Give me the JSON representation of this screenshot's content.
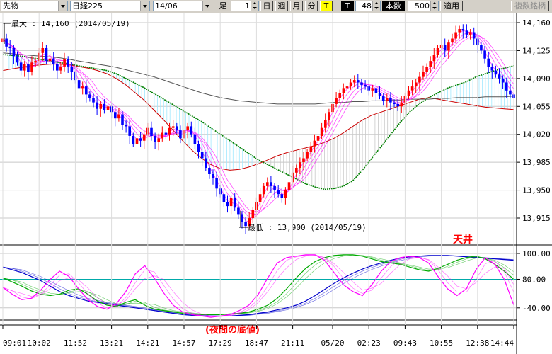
{
  "toolbar": {
    "instrument_type": "先物",
    "symbol": "日経225",
    "contract_month": "14/06",
    "bar_label": "足",
    "period_value": "1",
    "periods": [
      "日",
      "週",
      "月",
      "分",
      "T"
    ],
    "active_period": "T",
    "t_button": "T",
    "count_value": "48",
    "count_label": "本数",
    "display_count": "500",
    "apply_label": "適用",
    "multi_label": "複数銘柄"
  },
  "colors": {
    "up_candle": "#ff0000",
    "down_candle": "#0000ff",
    "ma_green": "#008000",
    "ma_red": "#cc0000",
    "ma_gray": "#555555",
    "band_fill": "#a0e8ff",
    "oscillator_magenta": "#ff00ff"
  },
  "annotations": {
    "max_label": "最大 : 14,160 (2014/05/19)",
    "min_label": "最低 : 13,900 (2014/05/19)",
    "top_label": "天井",
    "bottom_label": "(夜間の底値)"
  },
  "chart_data": [
    {
      "type": "line",
      "title": "",
      "y_axis_ticks": [
        "14,160",
        "14,125",
        "14,090",
        "14,055",
        "14,020",
        "13,985",
        "13,950",
        "13,915"
      ],
      "ylim": [
        13880,
        14175
      ],
      "x_axis_ticks": [
        "09:01",
        "10:02",
        "11:52",
        "13:21",
        "14:21",
        "14:57",
        "17:29",
        "18:47",
        "21:11",
        "05/20",
        "02:23",
        "09:43",
        "10:55",
        "12:38",
        "14:44"
      ],
      "x_tick_index": [
        0,
        10,
        20,
        30,
        40,
        50,
        60,
        70,
        80,
        91,
        101,
        111,
        121,
        131,
        141
      ],
      "max": {
        "value": 14160,
        "date": "2014/05/19"
      },
      "min": {
        "value": 13900,
        "date": "2014/05/19"
      },
      "close_series": [
        14140,
        14130,
        14128,
        14118,
        14110,
        14100,
        14108,
        14098,
        14110,
        14112,
        14122,
        14128,
        14112,
        14115,
        14108,
        14100,
        14105,
        14114,
        14105,
        14098,
        14088,
        14078,
        14080,
        14070,
        14065,
        14060,
        14052,
        14058,
        14050,
        14055,
        14048,
        14040,
        14045,
        14032,
        14030,
        14018,
        14008,
        14015,
        14012,
        14020,
        14028,
        14018,
        14010,
        14015,
        14022,
        14020,
        14028,
        14030,
        14025,
        14015,
        14025,
        14030,
        14020,
        14008,
        13998,
        13990,
        13978,
        13970,
        13965,
        13952,
        13945,
        13935,
        13930,
        13940,
        13928,
        13920,
        13910,
        13905,
        13915,
        13925,
        13935,
        13945,
        13955,
        13960,
        13955,
        13950,
        13945,
        13940,
        13950,
        13960,
        13972,
        13978,
        13985,
        13990,
        13998,
        14005,
        14012,
        14018,
        14028,
        14038,
        14048,
        14058,
        14065,
        14072,
        14078,
        14080,
        14085,
        14088,
        14085,
        14082,
        14080,
        14075,
        14078,
        14072,
        14068,
        14062,
        14065,
        14060,
        14058,
        14055,
        14060,
        14068,
        14075,
        14080,
        14085,
        14092,
        14098,
        14105,
        14112,
        14120,
        14128,
        14132,
        14125,
        14135,
        14140,
        14148,
        14152,
        14150,
        14145,
        14148,
        14140,
        14132,
        14125,
        14115,
        14105,
        14100,
        14095,
        14090,
        14085,
        14075,
        14070,
        14065
      ],
      "series": [
        {
          "name": "",
          "color": "#008000",
          "values": [
            14120,
            14119,
            14118,
            14116,
            14114,
            14112,
            14110,
            14108,
            14106,
            14104,
            14102,
            14100,
            14096,
            14090,
            14084,
            14078,
            14071,
            14064,
            14057,
            14050,
            14043,
            14036,
            14028,
            14020,
            14012,
            14004,
            13996,
            13988,
            13982,
            13976,
            13970,
            13964,
            13958,
            13954,
            13951,
            13952,
            13955,
            13962,
            13975,
            13990,
            14005,
            14020,
            14035,
            14048,
            14058,
            14066,
            14072,
            14078,
            14082,
            14086,
            14092,
            14096,
            14100,
            14103,
            14106
          ]
        },
        {
          "name": "",
          "color": "#cc0000",
          "values": [
            14100,
            14102,
            14104,
            14106,
            14107,
            14108,
            14108,
            14107,
            14105,
            14103,
            14100,
            14096,
            14090,
            14082,
            14072,
            14062,
            14050,
            14038,
            14025,
            14012,
            14000,
            13990,
            13982,
            13977,
            13975,
            13976,
            13979,
            13983,
            13988,
            13993,
            13997,
            14000,
            14003,
            14006,
            14010,
            14015,
            14022,
            14030,
            14038,
            14044,
            14048,
            14052,
            14056,
            14060,
            14064,
            14066,
            14064,
            14062,
            14060,
            14058,
            14056,
            14054,
            14053,
            14052,
            14051
          ]
        },
        {
          "name": "",
          "color": "#555555",
          "values": [
            14122,
            14121,
            14120,
            14119,
            14118,
            14117,
            14116,
            14114,
            14112,
            14110,
            14108,
            14106,
            14104,
            14101,
            14098,
            14095,
            14092,
            14088,
            14084,
            14080,
            14076,
            14072,
            14069,
            14066,
            14064,
            14062,
            14061,
            14060,
            14059,
            14058,
            14058,
            14058,
            14058,
            14058,
            14059,
            14060,
            14060,
            14061,
            14061,
            14062,
            14062,
            14063,
            14063,
            14064,
            14064,
            14064,
            14065,
            14065,
            14066,
            14066,
            14066,
            14067,
            14067,
            14067,
            14068
          ]
        }
      ]
    },
    {
      "type": "line",
      "title": "",
      "y_axis_ticks": [
        "100.00",
        "80.00",
        "-40.00"
      ],
      "series": [
        {
          "name": "",
          "color": "#0000cc",
          "values": [
            80,
            76,
            72,
            66,
            60,
            52,
            44,
            38,
            34,
            30,
            28,
            26,
            24,
            22,
            20,
            18,
            16,
            14,
            12,
            10,
            9,
            8,
            8,
            8,
            8,
            9,
            10,
            12,
            14,
            17,
            20,
            24,
            30,
            38,
            47,
            56,
            64,
            71,
            77,
            82,
            86,
            90,
            93,
            95,
            96,
            97,
            97,
            97,
            96,
            95,
            94,
            93,
            92,
            91,
            90
          ]
        },
        {
          "name": "",
          "color": "#00aa00",
          "values": [
            64,
            58,
            52,
            45,
            40,
            38,
            40,
            46,
            48,
            40,
            30,
            24,
            22,
            28,
            32,
            24,
            18,
            16,
            14,
            12,
            11,
            10,
            10,
            10,
            11,
            12,
            14,
            18,
            24,
            34,
            48,
            64,
            78,
            88,
            94,
            97,
            98,
            98,
            96,
            92,
            88,
            86,
            84,
            80,
            76,
            74,
            78,
            84,
            90,
            94,
            96,
            92,
            84,
            74,
            62
          ]
        },
        {
          "name": "",
          "color": "#ff00ff",
          "values": [
            50,
            40,
            32,
            34,
            46,
            62,
            74,
            66,
            48,
            32,
            22,
            18,
            26,
            44,
            70,
            82,
            64,
            42,
            24,
            14,
            10,
            8,
            6,
            8,
            10,
            16,
            24,
            40,
            64,
            86,
            94,
            96,
            98,
            98,
            90,
            72,
            54,
            44,
            38,
            54,
            74,
            88,
            94,
            96,
            94,
            86,
            66,
            48,
            38,
            48,
            76,
            94,
            84,
            62,
            24
          ]
        }
      ]
    }
  ]
}
